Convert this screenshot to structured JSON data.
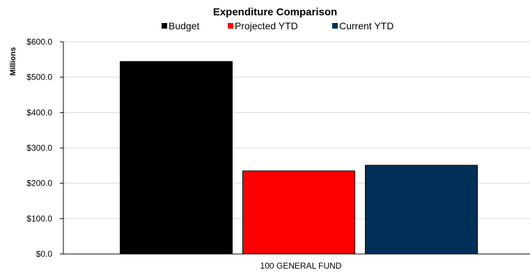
{
  "chart_data": {
    "type": "bar",
    "title": "Expenditure Comparison",
    "ylabel": "Millions",
    "xlabel": "",
    "categories": [
      "100 GENERAL FUND"
    ],
    "series": [
      {
        "name": "Budget",
        "color": "#000000",
        "values": [
          544.5
        ]
      },
      {
        "name": "Projected YTD",
        "color": "#ff0000",
        "values": [
          235.0
        ]
      },
      {
        "name": "Current YTD",
        "color": "#003057",
        "values": [
          251.0
        ]
      }
    ],
    "ylim": [
      0,
      600
    ],
    "yticks": [
      "$0.0",
      "$100.0",
      "$200.0",
      "$300.0",
      "$400.0",
      "$500.0",
      "$600.0"
    ],
    "grid": true,
    "legend_position": "top"
  }
}
